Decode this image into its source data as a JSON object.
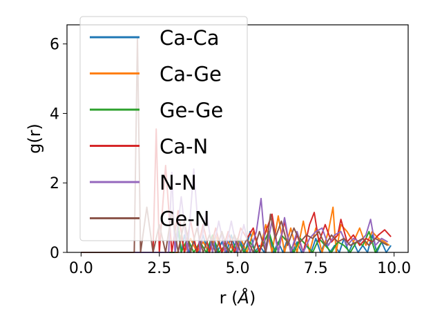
{
  "chart_data": {
    "type": "line",
    "xlabel_prefix": "r (",
    "xlabel_unit": "Å",
    "xlabel_suffix": ")",
    "ylabel": "g(r)",
    "xlim": [
      -0.45,
      10.45
    ],
    "ylim": [
      0,
      6.55
    ],
    "xticks": [
      0.0,
      2.5,
      5.0,
      7.5,
      10.0
    ],
    "xtick_labels": [
      "0.0",
      "2.5",
      "5.0",
      "7.5",
      "10.0"
    ],
    "yticks": [
      0,
      2,
      4,
      6
    ],
    "ytick_labels": [
      "0",
      "2",
      "4",
      "6"
    ],
    "grid": false,
    "legend_position": "top-left",
    "series": [
      {
        "name": "Ca-Ca",
        "color": "#1f77b4",
        "x": [
          0.0,
          3.0,
          3.1,
          3.2,
          3.3,
          3.45,
          3.6,
          3.75,
          3.9,
          4.05,
          4.2,
          4.35,
          4.5,
          4.65,
          4.8,
          4.95,
          5.1,
          5.25,
          5.4,
          5.55,
          5.7,
          5.85,
          6.0,
          6.15,
          6.3,
          6.45,
          6.6,
          6.75,
          6.9,
          7.05,
          7.2,
          7.35,
          7.5,
          7.65,
          7.8,
          7.95,
          8.1,
          8.25,
          8.4,
          8.55,
          8.7,
          8.85,
          9.0,
          9.15,
          9.3,
          9.45,
          9.6,
          9.75,
          9.9
        ],
        "y": [
          0,
          0,
          0.6,
          0,
          0.5,
          0,
          0.3,
          0,
          0.5,
          0,
          0.4,
          0,
          0.3,
          0,
          0.5,
          0,
          0.3,
          0,
          0.6,
          0,
          0.2,
          0,
          0.5,
          0,
          0.3,
          0,
          0.4,
          0,
          0.3,
          0,
          0.2,
          0,
          0.4,
          0,
          0.3,
          0,
          0.2,
          0,
          0.4,
          0,
          0.3,
          0,
          0.2,
          0,
          0.5,
          0,
          0.3,
          0,
          0.2
        ]
      },
      {
        "name": "Ca-Ge",
        "color": "#ff7f0e",
        "x": [
          0.0,
          3.1,
          3.2,
          3.3,
          3.5,
          3.7,
          3.9,
          4.1,
          4.3,
          4.5,
          4.7,
          4.9,
          5.1,
          5.3,
          5.5,
          5.7,
          5.9,
          6.1,
          6.3,
          6.5,
          6.7,
          6.9,
          7.1,
          7.3,
          7.5,
          7.7,
          7.9,
          8.05,
          8.15,
          8.3,
          8.5,
          8.7,
          8.9,
          9.1,
          9.3,
          9.5,
          9.7,
          9.85
        ],
        "y": [
          0,
          0,
          0.5,
          0,
          0.4,
          0,
          0.3,
          0,
          0.5,
          0,
          0.3,
          0,
          0.4,
          0,
          0.6,
          0,
          0.8,
          0,
          1.05,
          0,
          0.7,
          0,
          0.9,
          0,
          0.7,
          0,
          0.6,
          1.3,
          0,
          0.8,
          0.6,
          0.3,
          0.7,
          0.2,
          0.6,
          0.4,
          0.3,
          0.2
        ]
      },
      {
        "name": "Ge-Ge",
        "color": "#2ca02c",
        "x": [
          0.0,
          3.0,
          3.1,
          3.2,
          3.4,
          3.6,
          3.8,
          4.0,
          4.2,
          4.4,
          4.6,
          4.8,
          5.0,
          5.2,
          5.4,
          5.6,
          5.8,
          6.0,
          6.2,
          6.4,
          6.6,
          6.8,
          7.0,
          7.2,
          7.4,
          7.6,
          7.8,
          8.0,
          8.2,
          8.4,
          8.6,
          8.8,
          9.0,
          9.2,
          9.4,
          9.6,
          9.8
        ],
        "y": [
          0,
          0,
          0.9,
          0,
          0.4,
          0,
          0.3,
          0,
          0.5,
          0,
          0.2,
          0,
          0.4,
          0,
          0.3,
          0,
          0.2,
          0.6,
          0,
          0.5,
          0.3,
          0,
          0.4,
          0.2,
          0,
          0.4,
          0.2,
          0,
          0.3,
          0.2,
          0,
          0.3,
          0.2,
          0.6,
          0,
          0.3,
          0.2
        ]
      },
      {
        "name": "Ca-N",
        "color": "#d62728",
        "x": [
          0.0,
          2.3,
          2.4,
          2.5,
          2.7,
          2.9,
          3.1,
          3.3,
          3.5,
          3.7,
          3.9,
          4.1,
          4.3,
          4.5,
          4.7,
          4.9,
          5.1,
          5.3,
          5.5,
          5.7,
          5.9,
          6.1,
          6.3,
          6.5,
          6.7,
          6.9,
          7.1,
          7.3,
          7.45,
          7.6,
          7.8,
          8.0,
          8.2,
          8.3,
          8.5,
          8.7,
          8.9,
          9.1,
          9.3,
          9.5,
          9.7,
          9.9
        ],
        "y": [
          0,
          0,
          3.55,
          0,
          2.5,
          0,
          1.2,
          0,
          0.9,
          0,
          0.8,
          0,
          0.7,
          0,
          0.6,
          0,
          0.7,
          0.4,
          0.7,
          0,
          0.6,
          1.1,
          0,
          0.9,
          0,
          0.5,
          0,
          0.8,
          1.15,
          0.3,
          0.8,
          0.3,
          0.5,
          0.95,
          0.3,
          0.5,
          0.2,
          0.4,
          0.3,
          0.5,
          0.65,
          0.45
        ]
      },
      {
        "name": "N-N",
        "color": "#9467bd",
        "x": [
          0.0,
          2.8,
          2.9,
          3.0,
          3.2,
          3.4,
          3.6,
          3.8,
          4.0,
          4.2,
          4.4,
          4.6,
          4.8,
          5.0,
          5.2,
          5.4,
          5.6,
          5.75,
          5.9,
          6.1,
          6.3,
          6.5,
          6.7,
          6.9,
          7.1,
          7.3,
          7.5,
          7.7,
          7.9,
          8.1,
          8.3,
          8.5,
          8.7,
          8.9,
          9.1,
          9.25,
          9.4,
          9.6,
          9.8
        ],
        "y": [
          0,
          0,
          2.3,
          0,
          1.6,
          0,
          2.4,
          0,
          1.2,
          0,
          0.9,
          0,
          0.9,
          0,
          0.8,
          0,
          0.6,
          1.55,
          0,
          0.9,
          0,
          1.0,
          0,
          0.6,
          0,
          0.4,
          0.6,
          0.7,
          0.2,
          0.5,
          0.6,
          0.2,
          0.4,
          0.3,
          0.5,
          0.95,
          0.2,
          0.4,
          0.3
        ]
      },
      {
        "name": "Ge-N",
        "color": "#8c564b",
        "x": [
          0.0,
          1.7,
          1.8,
          1.9,
          2.1,
          2.3,
          2.5,
          2.7,
          2.9,
          3.1,
          3.3,
          3.5,
          3.7,
          3.9,
          4.1,
          4.3,
          4.5,
          4.7,
          4.9,
          5.1,
          5.3,
          5.5,
          5.7,
          5.9,
          6.05,
          6.2,
          6.4,
          6.6,
          6.8,
          7.0,
          7.2,
          7.4,
          7.6,
          7.8,
          8.0,
          8.2,
          8.4,
          8.6,
          8.8,
          9.0,
          9.2,
          9.4,
          9.6,
          9.8
        ],
        "y": [
          0,
          0,
          6.2,
          0,
          1.3,
          0,
          0.8,
          0,
          1.2,
          0,
          0.9,
          0,
          0.7,
          0,
          0.5,
          0,
          0.6,
          0,
          0.5,
          0,
          0.4,
          0,
          0.6,
          0,
          1.1,
          0.4,
          0.9,
          0.2,
          0.7,
          0.3,
          0.5,
          0.4,
          0.6,
          0.2,
          0.5,
          0.3,
          0.4,
          0.2,
          0.3,
          0.4,
          0.2,
          0.4,
          0.3,
          0.2
        ]
      }
    ]
  }
}
